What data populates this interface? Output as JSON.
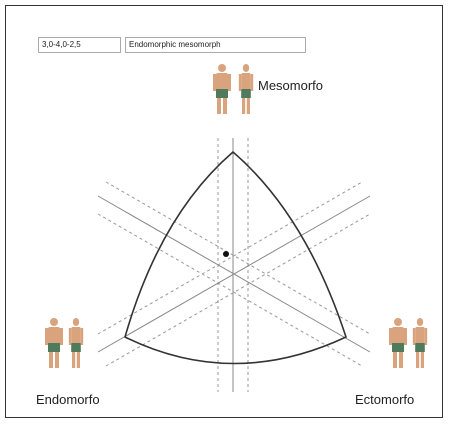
{
  "fields": {
    "rating": "3,0-4,0-2,5",
    "classification": "Endomorphic mesomorph"
  },
  "labels": {
    "top": "Mesomorfo",
    "left": "Endomorfo",
    "right": "Ectomorfo"
  }
}
